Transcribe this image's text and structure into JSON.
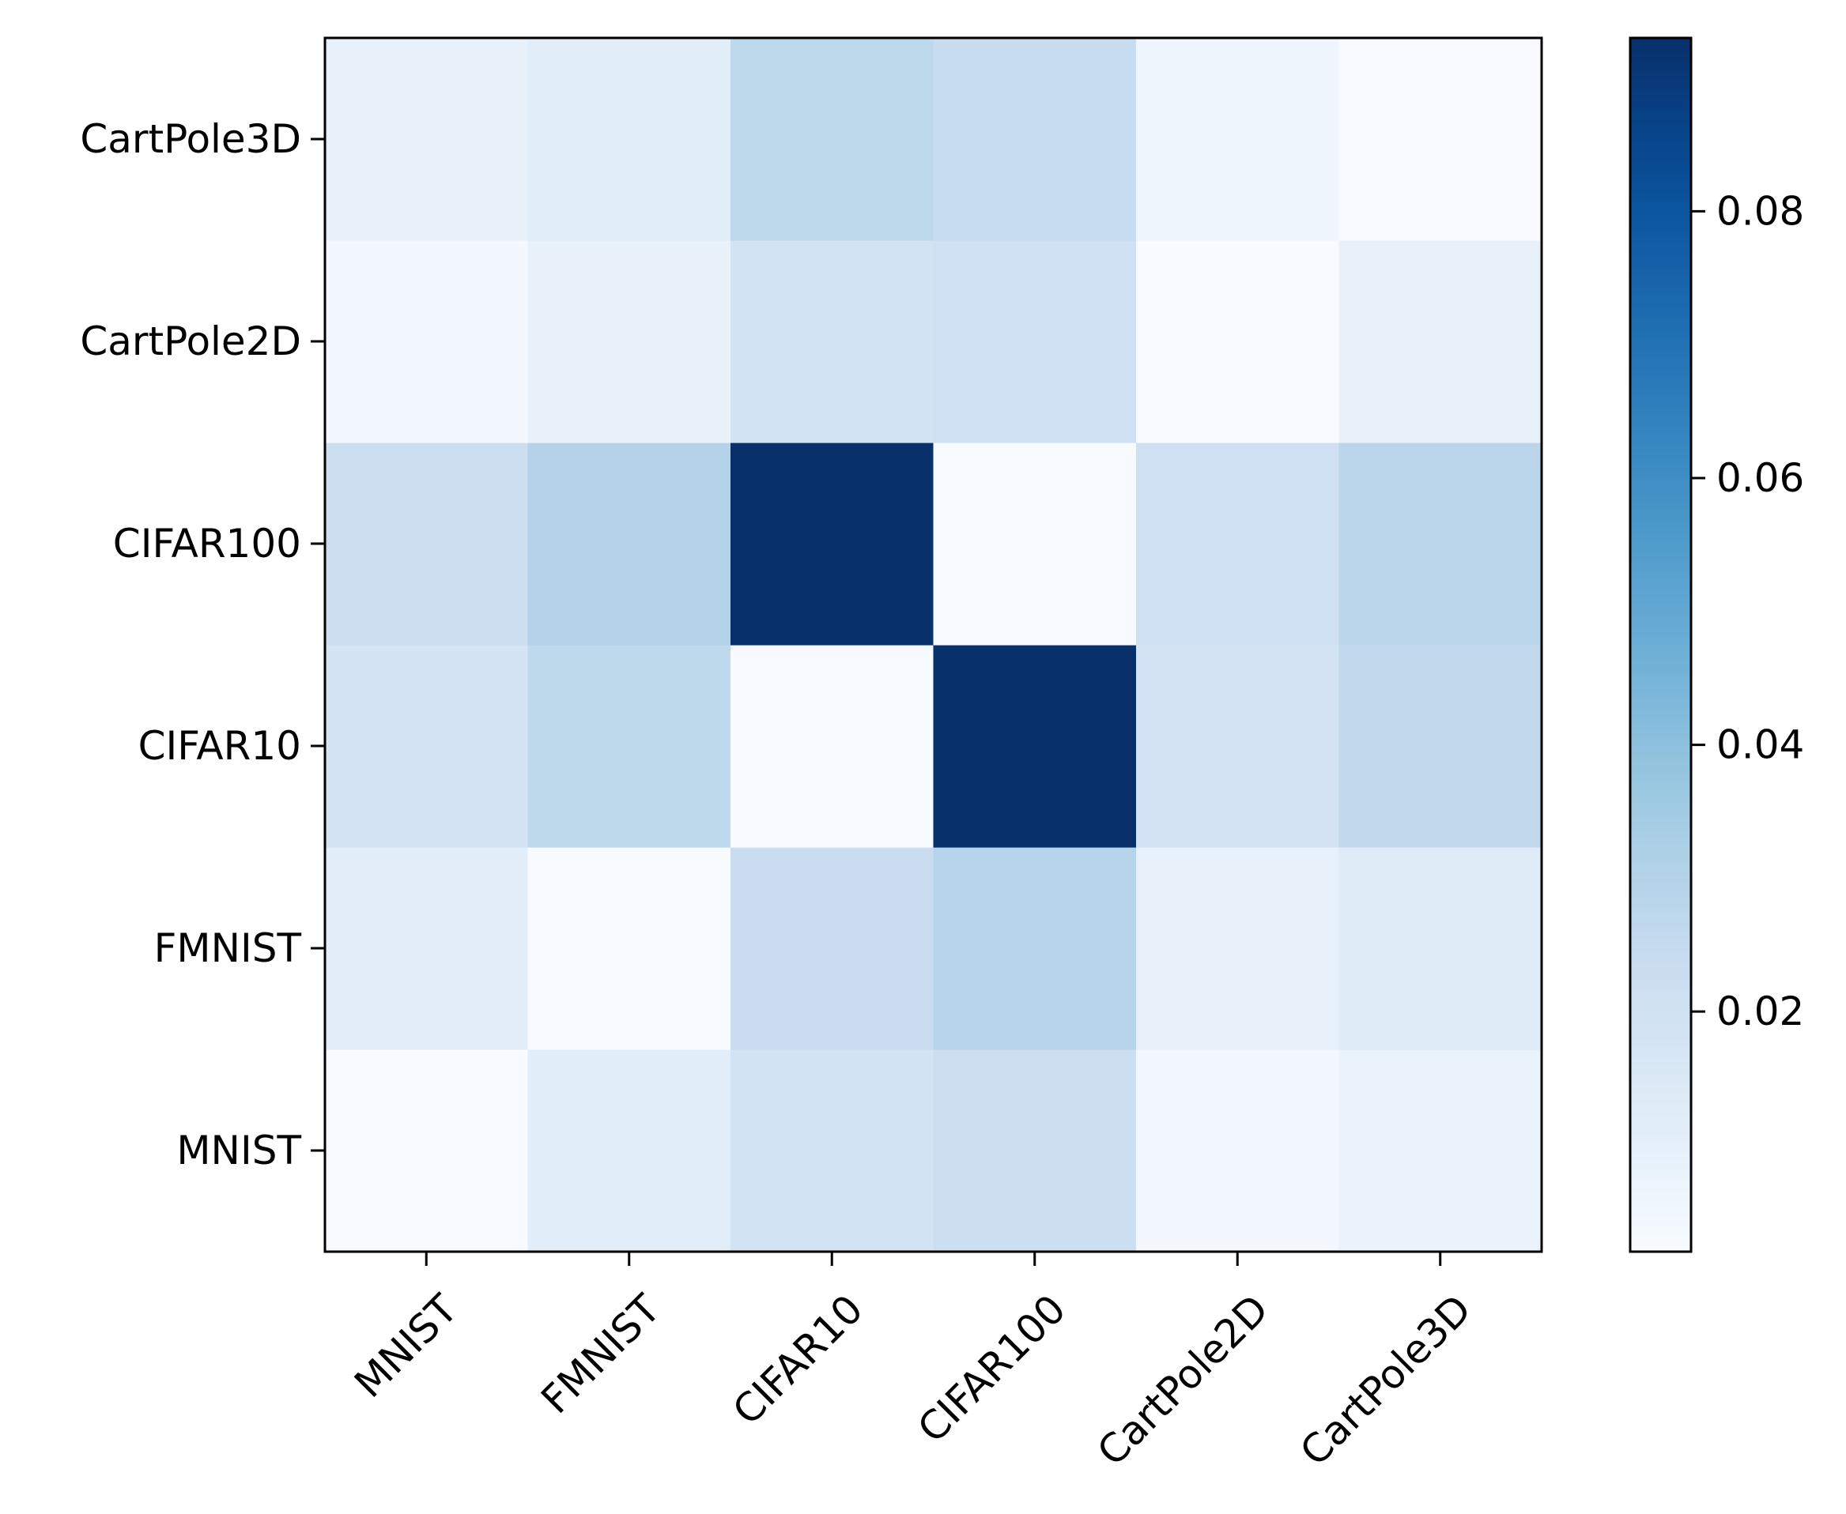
{
  "chart_data": {
    "type": "heatmap",
    "title": "",
    "xlabel": "",
    "ylabel": "",
    "x_categories": [
      "MNIST",
      "FMNIST",
      "CIFAR10",
      "CIFAR100",
      "CartPole2D",
      "CartPole3D"
    ],
    "y_categories": [
      "MNIST",
      "FMNIST",
      "CIFAR10",
      "CIFAR100",
      "CartPole2D",
      "CartPole3D"
    ],
    "y_order": "bottom-to-top",
    "values": [
      [
        0.002,
        0.012,
        0.019,
        0.022,
        0.004,
        0.008
      ],
      [
        0.011,
        0.002,
        0.023,
        0.029,
        0.009,
        0.013
      ],
      [
        0.018,
        0.027,
        0.002,
        0.093,
        0.018,
        0.026
      ],
      [
        0.022,
        0.03,
        0.093,
        0.002,
        0.021,
        0.028
      ],
      [
        0.004,
        0.009,
        0.019,
        0.021,
        0.002,
        0.009
      ],
      [
        0.009,
        0.012,
        0.027,
        0.024,
        0.006,
        0.002
      ]
    ],
    "colormap": "Blues",
    "colorbar": {
      "min": 0.002,
      "max": 0.093,
      "ticks": [
        0.02,
        0.04,
        0.06,
        0.08
      ],
      "tick_labels": [
        "0.02",
        "0.04",
        "0.06",
        "0.08"
      ]
    },
    "grid": false
  }
}
